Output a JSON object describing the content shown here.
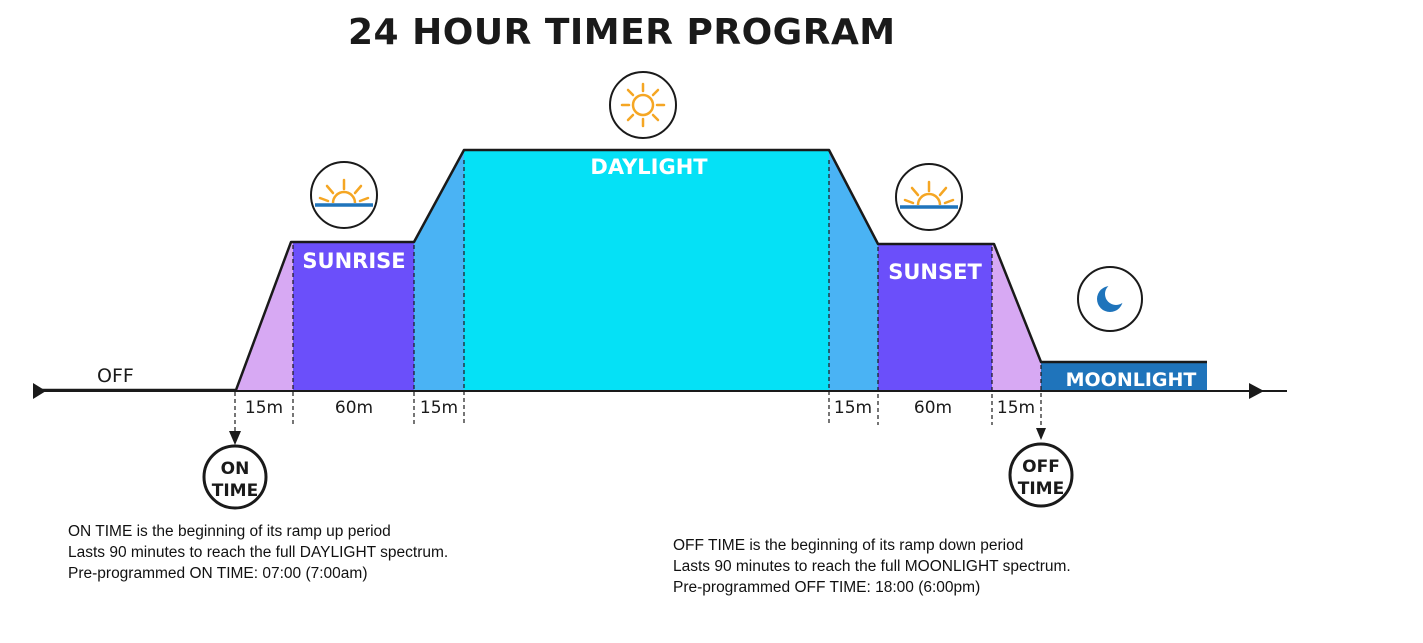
{
  "title": "24 HOUR TIMER PROGRAM",
  "phases": {
    "off": "OFF",
    "sunrise": "SUNRISE",
    "daylight": "DAYLIGHT",
    "sunset": "SUNSET",
    "moonlight": "MOONLIGHT"
  },
  "durations": {
    "ramp_up_1": "15m",
    "sunrise": "60m",
    "ramp_up_2": "15m",
    "ramp_down_1": "15m",
    "sunset": "60m",
    "ramp_down_2": "15m"
  },
  "markers": {
    "on_time": {
      "line1": "ON",
      "line2": "TIME"
    },
    "off_time": {
      "line1": "OFF",
      "line2": "TIME"
    }
  },
  "notes": {
    "on": [
      "ON TIME is the beginning of its ramp up period",
      "Lasts 90 minutes to reach the full DAYLIGHT spectrum.",
      "Pre-programmed ON TIME: 07:00 (7:00am)"
    ],
    "off": [
      "OFF TIME is the beginning of its ramp down period",
      "Lasts 90 minutes to reach the full MOONLIGHT spectrum.",
      "Pre-programmed OFF TIME: 18:00 (6:00pm)"
    ]
  },
  "icons": {
    "sunrise": "sunrise-icon",
    "daylight": "sun-icon",
    "sunset": "sunset-icon",
    "moonlight": "moon-icon"
  },
  "colors": {
    "ramp_lilac": "#d7a9f3",
    "sunrise_sunset": "#6b4ffa",
    "ramp_blue": "#4ab3f4",
    "daylight": "#05e1f6",
    "moonlight": "#1f74bb",
    "sun": "#f5a623",
    "horizon": "#1f74bb",
    "line": "#1a1a1a"
  }
}
